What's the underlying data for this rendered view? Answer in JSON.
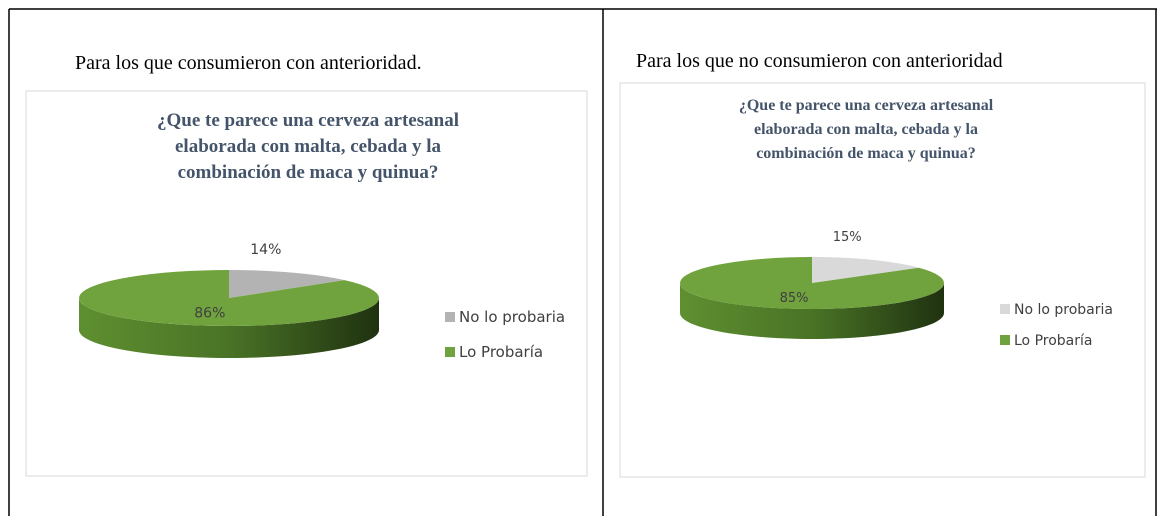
{
  "captions": [
    "Para los que consumieron con anterioridad.",
    "Para los que no consumieron con anterioridad"
  ],
  "chart_data": [
    {
      "type": "pie3d",
      "title": [
        "¿Que te parece una cerveza artesanal",
        "elaborada con malta, cebada y la",
        "combinación de maca y quinua?"
      ],
      "categories": [
        "No lo probaria",
        "Lo Probaría"
      ],
      "values": [
        14,
        86
      ],
      "value_labels": [
        "14%",
        "86%"
      ],
      "colors": [
        "#b3b3b3",
        "#70a33d"
      ],
      "legend": "right"
    },
    {
      "type": "pie3d",
      "title": [
        "¿Que te parece una cerveza artesanal",
        "elaborada con malta, cebada y la",
        "combinación de maca y quinua?"
      ],
      "categories": [
        "No lo probaria",
        "Lo Probaría"
      ],
      "values": [
        15,
        85
      ],
      "value_labels": [
        "15%",
        "85%"
      ],
      "colors": [
        "#d9d9d9",
        "#70a33d"
      ],
      "legend": "right"
    }
  ]
}
